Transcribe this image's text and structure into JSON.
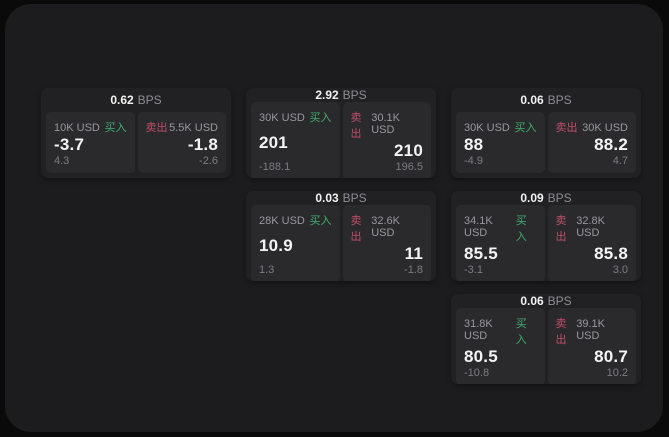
{
  "labels": {
    "bps_suffix": "BPS",
    "buy": "买入",
    "sell": "卖出"
  },
  "colors": {
    "background": "#0a0a0a",
    "window": "#1c1c1e",
    "card": "#212123",
    "panel": "#2a2a2d",
    "buy_green": "#3fae6e",
    "sell_red": "#c04e68"
  },
  "cards": [
    {
      "bps": "0.62",
      "buy": {
        "size": "10K USD",
        "price": "-3.7",
        "delta": "4.3"
      },
      "sell": {
        "size": "5.5K USD",
        "price": "-1.8",
        "delta": "-2.6"
      }
    },
    {
      "bps": "2.92",
      "buy": {
        "size": "30K USD",
        "price": "201",
        "delta": "-188.1"
      },
      "sell": {
        "size": "30.1K USD",
        "price": "210",
        "delta": "196.5"
      }
    },
    {
      "bps": "0.06",
      "buy": {
        "size": "30K USD",
        "price": "88",
        "delta": "-4.9"
      },
      "sell": {
        "size": "30K USD",
        "price": "88.2",
        "delta": "4.7"
      }
    },
    {
      "bps": "0.03",
      "buy": {
        "size": "28K USD",
        "price": "10.9",
        "delta": "1.3"
      },
      "sell": {
        "size": "32.6K USD",
        "price": "11",
        "delta": "-1.8"
      }
    },
    {
      "bps": "0.09",
      "buy": {
        "size": "34.1K USD",
        "price": "85.5",
        "delta": "-3.1"
      },
      "sell": {
        "size": "32.8K USD",
        "price": "85.8",
        "delta": "3.0"
      }
    },
    {
      "bps": "0.06",
      "buy": {
        "size": "31.8K USD",
        "price": "80.5",
        "delta": "-10.8"
      },
      "sell": {
        "size": "39.1K USD",
        "price": "80.7",
        "delta": "10.2"
      }
    }
  ]
}
